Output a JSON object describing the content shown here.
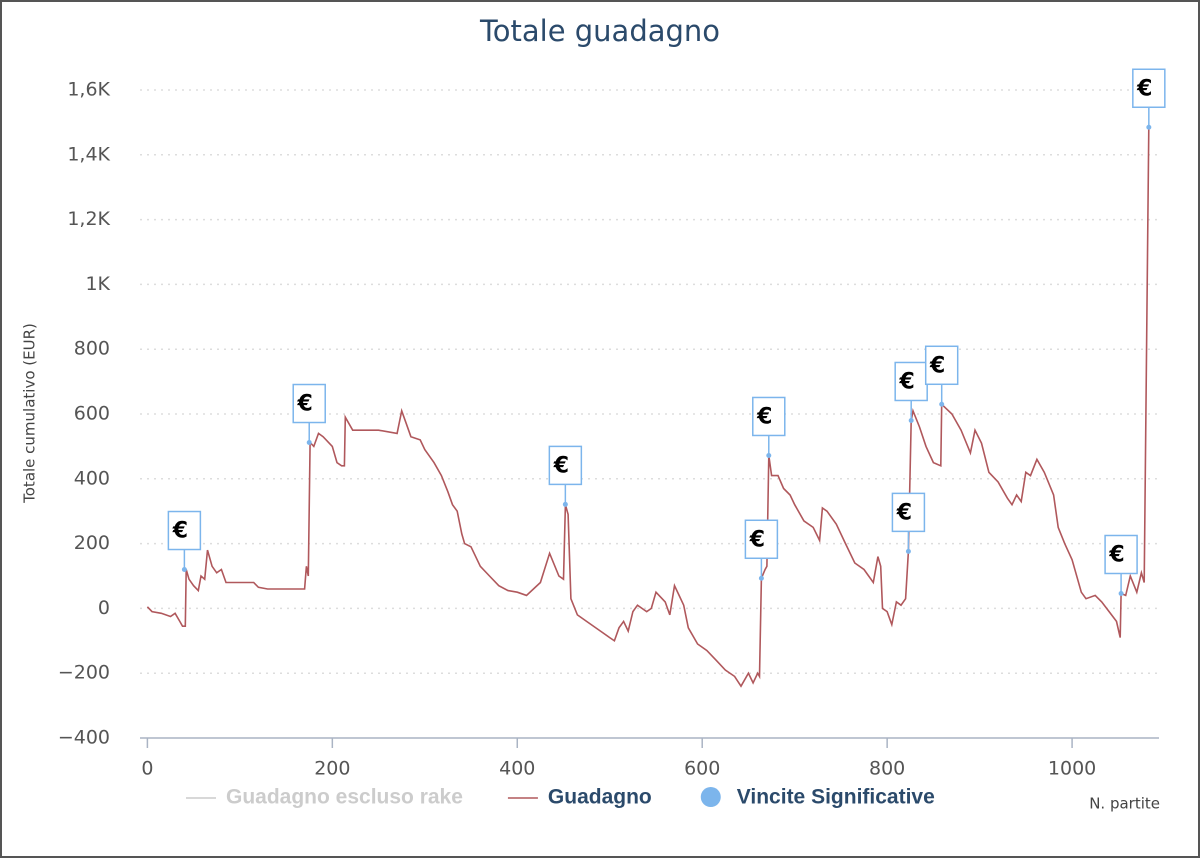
{
  "chart_data": {
    "type": "line",
    "title": "Totale guadagno",
    "y_label": "Totale cumulativo (EUR)",
    "x_label": "N. partite",
    "xlim": [
      -8,
      1094
    ],
    "xticks": [
      0,
      200,
      400,
      600,
      800,
      1000
    ],
    "ylim": [
      -400,
      1600
    ],
    "yticks": [
      {
        "value": -400,
        "label": "−400"
      },
      {
        "value": -200,
        "label": "−200"
      },
      0,
      200,
      400,
      600,
      800,
      {
        "value": 1000,
        "label": "1K"
      },
      {
        "value": 1200,
        "label": "1,2K"
      },
      {
        "value": 1400,
        "label": "1,4K"
      },
      {
        "value": 1600,
        "label": "1,6K"
      }
    ],
    "grid": true,
    "point_label": "€",
    "series": [
      {
        "name": "Guadagno escluso rake",
        "color": "#cccccc",
        "visible": false,
        "x": [],
        "values": []
      },
      {
        "name": "Guadagno",
        "color": "#b0585c",
        "x": [
          0,
          5,
          15,
          25,
          30,
          35,
          38,
          41,
          42,
          45,
          50,
          55,
          58,
          62,
          65,
          70,
          75,
          80,
          85,
          100,
          115,
          120,
          130,
          160,
          170,
          172,
          174,
          176,
          180,
          185,
          190,
          200,
          205,
          210,
          213,
          214,
          218,
          222,
          250,
          270,
          275,
          280,
          285,
          295,
          300,
          310,
          318,
          325,
          330,
          335,
          340,
          343,
          350,
          360,
          370,
          380,
          390,
          400,
          410,
          425,
          435,
          445,
          450,
          452,
          455,
          458,
          465,
          475,
          490,
          500,
          505,
          510,
          515,
          520,
          525,
          530,
          540,
          545,
          550,
          560,
          565,
          570,
          575,
          580,
          585,
          595,
          605,
          615,
          625,
          635,
          642,
          650,
          655,
          660,
          662,
          664,
          668,
          670,
          672,
          675,
          682,
          688,
          695,
          700,
          710,
          720,
          727,
          730,
          735,
          745,
          755,
          765,
          775,
          785,
          790,
          793,
          795,
          800,
          805,
          810,
          815,
          820,
          823,
          826,
          828,
          835,
          842,
          850,
          858,
          859,
          870,
          880,
          890,
          895,
          902,
          910,
          920,
          930,
          935,
          940,
          945,
          950,
          955,
          962,
          970,
          980,
          985,
          992,
          1000,
          1010,
          1015,
          1025,
          1032,
          1040,
          1048,
          1052,
          1053,
          1058,
          1063,
          1070,
          1075,
          1078,
          1083
        ],
        "values": [
          5,
          -10,
          -15,
          -25,
          -15,
          -40,
          -55,
          -55,
          120,
          90,
          70,
          55,
          100,
          90,
          180,
          130,
          110,
          120,
          80,
          80,
          80,
          65,
          60,
          60,
          60,
          130,
          100,
          512,
          500,
          540,
          530,
          500,
          450,
          440,
          440,
          590,
          570,
          550,
          550,
          540,
          610,
          570,
          530,
          520,
          490,
          450,
          410,
          360,
          320,
          300,
          230,
          200,
          190,
          130,
          100,
          70,
          55,
          50,
          40,
          80,
          170,
          100,
          90,
          320,
          290,
          30,
          -20,
          -40,
          -70,
          -90,
          -100,
          -60,
          -40,
          -70,
          -10,
          10,
          -10,
          0,
          50,
          20,
          -20,
          70,
          40,
          10,
          -60,
          -110,
          -130,
          -160,
          -190,
          -210,
          -240,
          -200,
          -230,
          -200,
          -210,
          93,
          120,
          130,
          472,
          410,
          410,
          370,
          350,
          320,
          270,
          250,
          210,
          310,
          300,
          260,
          200,
          140,
          120,
          80,
          160,
          130,
          0,
          -10,
          -50,
          20,
          10,
          30,
          176,
          580,
          610,
          560,
          500,
          450,
          440,
          630,
          600,
          550,
          480,
          550,
          510,
          420,
          390,
          340,
          320,
          350,
          330,
          420,
          410,
          460,
          420,
          350,
          250,
          200,
          150,
          50,
          30,
          40,
          20,
          -10,
          -40,
          -90,
          46,
          40,
          100,
          50,
          110,
          80,
          1485
        ]
      },
      {
        "name": "Vincite Significative",
        "color": "#7cb5ec",
        "type": "scatter",
        "x": [
          40,
          175,
          452,
          664,
          672,
          823,
          826,
          859,
          1053,
          1083
        ],
        "values": [
          120,
          512,
          321,
          93,
          472,
          176,
          580,
          630,
          46,
          1485
        ]
      }
    ]
  }
}
